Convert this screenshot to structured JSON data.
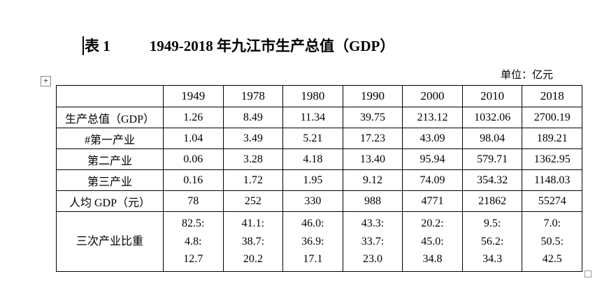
{
  "title": {
    "label": "表 1",
    "text": "1949-2018 年九江市生产总值（GDP）"
  },
  "unit_note": "单位：亿元",
  "handles": {
    "move": "+",
    "resize": ""
  },
  "table": {
    "header": [
      "",
      "1949",
      "1978",
      "1980",
      "1990",
      "2000",
      "2010",
      "2018"
    ],
    "rows": [
      {
        "label": "生产总值（GDP）",
        "values": [
          "1.26",
          "8.49",
          "11.34",
          "39.75",
          "213.12",
          "1032.06",
          "2700.19"
        ]
      },
      {
        "label": "#第一产业",
        "values": [
          "1.04",
          "3.49",
          "5.21",
          "17.23",
          "43.09",
          "98.04",
          "189.21"
        ]
      },
      {
        "label": "第二产业",
        "values": [
          "0.06",
          "3.28",
          "4.18",
          "13.40",
          "95.94",
          "579.71",
          "1362.95"
        ]
      },
      {
        "label": "第三产业",
        "values": [
          "0.16",
          "1.72",
          "1.95",
          "9.12",
          "74.09",
          "354.32",
          "1148.03"
        ]
      },
      {
        "label": "人均 GDP（元）",
        "values": [
          "78",
          "252",
          "330",
          "988",
          "4771",
          "21862",
          "55274"
        ]
      },
      {
        "label": "三次产业比重",
        "values": [
          "82.5:\n4.8:\n12.7",
          "41.1:\n38.7:\n20.2",
          "46.0:\n36.9:\n17.1",
          "43.3:\n33.7:\n23.0",
          "20.2:\n45.0:\n34.8",
          "9.5:\n56.2:\n34.3",
          "7.0:\n50.5:\n42.5"
        ]
      }
    ]
  }
}
